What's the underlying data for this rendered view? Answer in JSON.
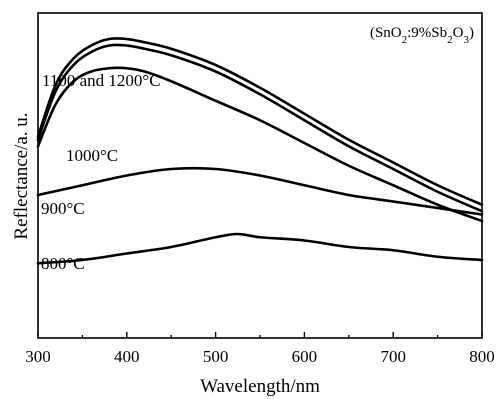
{
  "chart_data": {
    "type": "line",
    "xlabel": "Wavelength/nm",
    "ylabel": "Reflectance/a. u.",
    "xlim": [
      300,
      800
    ],
    "ylim": [
      0,
      100
    ],
    "xticks": [
      "300",
      "400",
      "500",
      "600",
      "700",
      "800"
    ],
    "yticks_shown": false,
    "grid": false,
    "annotation": {
      "prefix": "(SnO",
      "sub1": "2",
      "mid": ":9%Sb",
      "sub2": "2",
      "mid2": "O",
      "sub3": "3",
      "suffix": ")"
    },
    "series": [
      {
        "name": "1100 and 1200°C",
        "x": [
          300,
          320,
          340,
          360,
          380,
          400,
          420,
          450,
          500,
          550,
          600,
          650,
          700,
          750,
          800
        ],
        "values": [
          62,
          78,
          86,
          90,
          92,
          92,
          91,
          89,
          84,
          77,
          69,
          61,
          54,
          47,
          41
        ]
      },
      {
        "name": "1100 and 1200°C",
        "x": [
          300,
          320,
          340,
          360,
          380,
          400,
          420,
          450,
          500,
          550,
          600,
          650,
          700,
          750,
          800
        ],
        "values": [
          61,
          76,
          84,
          88,
          90,
          90,
          89,
          87,
          82,
          75,
          67,
          59,
          52,
          45,
          39
        ]
      },
      {
        "name": "1000°C",
        "x": [
          300,
          320,
          340,
          360,
          380,
          400,
          420,
          450,
          500,
          550,
          600,
          650,
          700,
          750,
          800
        ],
        "values": [
          59,
          72,
          79,
          82,
          83,
          83,
          82,
          79,
          73,
          67,
          60,
          53,
          47,
          41,
          36
        ]
      },
      {
        "name": "900°C",
        "x": [
          300,
          350,
          400,
          450,
          500,
          550,
          600,
          650,
          700,
          750,
          800
        ],
        "values": [
          44,
          47,
          50,
          52,
          52,
          50,
          47,
          44,
          42,
          40,
          38
        ]
      },
      {
        "name": "800°C",
        "x": [
          300,
          350,
          400,
          450,
          500,
          525,
          550,
          600,
          650,
          700,
          750,
          800
        ],
        "values": [
          23,
          24,
          26,
          28,
          31,
          32,
          31,
          30,
          28,
          27,
          25,
          24
        ]
      }
    ],
    "labels": {
      "s1100": "1100 and 1200°C",
      "s1000": "1000°C",
      "s900": "900°C",
      "s800": "800°C"
    }
  }
}
